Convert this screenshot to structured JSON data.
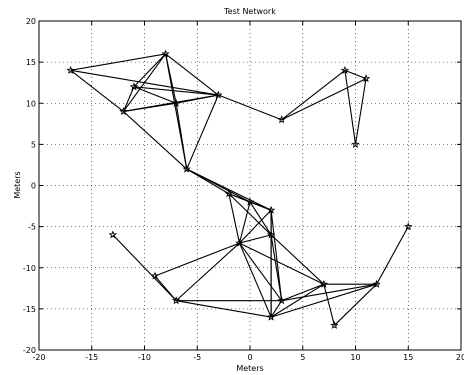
{
  "chart_data": {
    "type": "scatter",
    "title": "Test Network",
    "xlabel": "Meters",
    "ylabel": "Meters",
    "xlim": [
      -20,
      20
    ],
    "ylim": [
      -20,
      20
    ],
    "xticks": [
      -20,
      -15,
      -10,
      -5,
      0,
      5,
      10,
      15,
      20
    ],
    "yticks": [
      -20,
      -15,
      -10,
      -5,
      0,
      5,
      10,
      15,
      20
    ],
    "grid": true,
    "marker": "star",
    "nodes": [
      [
        -17,
        14
      ],
      [
        -8,
        16
      ],
      [
        -11,
        12
      ],
      [
        -12,
        9
      ],
      [
        -7,
        10
      ],
      [
        -3,
        11
      ],
      [
        3,
        8
      ],
      [
        9,
        14
      ],
      [
        11,
        13
      ],
      [
        10,
        5
      ],
      [
        -6,
        2
      ],
      [
        -2,
        -1
      ],
      [
        0,
        -2
      ],
      [
        2,
        -3
      ],
      [
        -1,
        -7
      ],
      [
        2,
        -6
      ],
      [
        -13,
        -6
      ],
      [
        -9,
        -11
      ],
      [
        -7,
        -14
      ],
      [
        2,
        -16
      ],
      [
        3,
        -14
      ],
      [
        7,
        -12
      ],
      [
        8,
        -17
      ],
      [
        12,
        -12
      ],
      [
        15,
        -5
      ]
    ],
    "edges": [
      [
        0,
        1
      ],
      [
        0,
        5
      ],
      [
        0,
        3
      ],
      [
        1,
        2
      ],
      [
        1,
        3
      ],
      [
        1,
        4
      ],
      [
        1,
        5
      ],
      [
        2,
        3
      ],
      [
        2,
        4
      ],
      [
        2,
        5
      ],
      [
        3,
        4
      ],
      [
        3,
        5
      ],
      [
        3,
        10
      ],
      [
        4,
        5
      ],
      [
        4,
        10
      ],
      [
        1,
        10
      ],
      [
        5,
        10
      ],
      [
        5,
        6
      ],
      [
        6,
        7
      ],
      [
        6,
        8
      ],
      [
        7,
        8
      ],
      [
        7,
        9
      ],
      [
        8,
        9
      ],
      [
        10,
        11
      ],
      [
        10,
        12
      ],
      [
        10,
        13
      ],
      [
        11,
        12
      ],
      [
        11,
        13
      ],
      [
        11,
        14
      ],
      [
        12,
        13
      ],
      [
        12,
        14
      ],
      [
        12,
        15
      ],
      [
        13,
        14
      ],
      [
        13,
        15
      ],
      [
        14,
        15
      ],
      [
        14,
        17
      ],
      [
        14,
        18
      ],
      [
        14,
        19
      ],
      [
        14,
        20
      ],
      [
        14,
        21
      ],
      [
        15,
        19
      ],
      [
        15,
        20
      ],
      [
        15,
        21
      ],
      [
        16,
        18
      ],
      [
        17,
        18
      ],
      [
        18,
        20
      ],
      [
        18,
        19
      ],
      [
        19,
        20
      ],
      [
        19,
        21
      ],
      [
        19,
        23
      ],
      [
        20,
        21
      ],
      [
        20,
        23
      ],
      [
        21,
        22
      ],
      [
        21,
        23
      ],
      [
        22,
        23
      ],
      [
        23,
        24
      ],
      [
        11,
        15
      ],
      [
        13,
        19
      ],
      [
        13,
        20
      ]
    ]
  }
}
